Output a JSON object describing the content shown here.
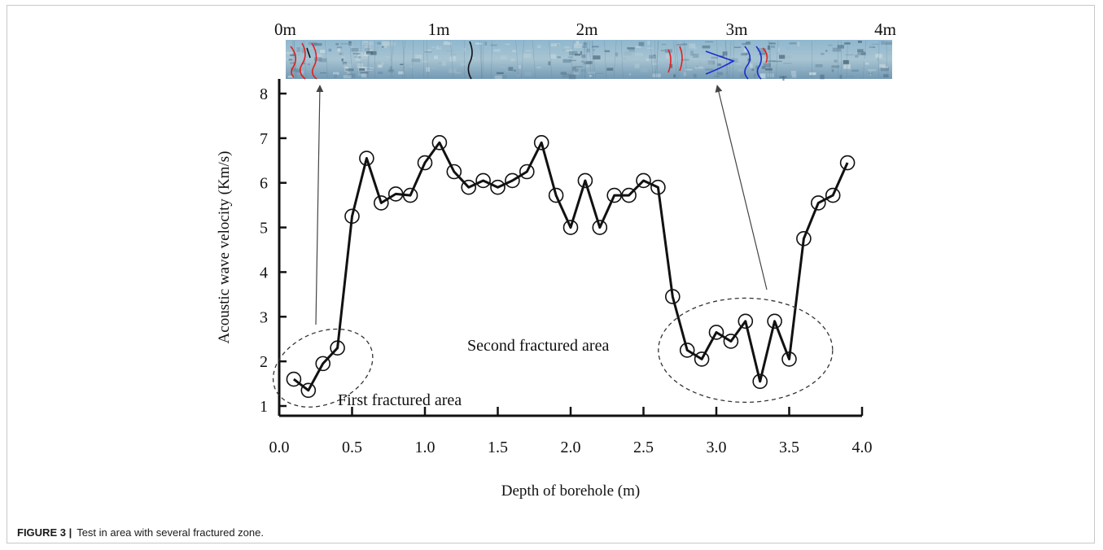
{
  "chart_data": {
    "type": "line",
    "title": "",
    "xlabel": "Depth of borehole (m)",
    "ylabel": "Acoustic wave velocity (Km/s)",
    "xlim": [
      0,
      4.0
    ],
    "ylim": [
      1,
      8
    ],
    "x_ticks": [
      "0.0",
      "0.5",
      "1.0",
      "1.5",
      "2.0",
      "2.5",
      "3.0",
      "3.5",
      "4.0"
    ],
    "y_ticks": [
      "1",
      "2",
      "3",
      "4",
      "5",
      "6",
      "7",
      "8"
    ],
    "grid": false,
    "x": [
      0.1,
      0.2,
      0.3,
      0.4,
      0.5,
      0.6,
      0.7,
      0.8,
      0.9,
      1.0,
      1.1,
      1.2,
      1.3,
      1.4,
      1.5,
      1.6,
      1.7,
      1.8,
      1.9,
      2.0,
      2.1,
      2.2,
      2.3,
      2.4,
      2.5,
      2.6,
      2.7,
      2.8,
      2.9,
      3.0,
      3.1,
      3.2,
      3.3,
      3.4,
      3.5,
      3.6,
      3.7,
      3.8,
      3.9
    ],
    "y": [
      1.6,
      1.35,
      1.95,
      2.3,
      5.25,
      6.55,
      5.55,
      5.75,
      5.72,
      6.45,
      6.9,
      6.25,
      5.9,
      6.05,
      5.9,
      6.05,
      6.25,
      6.9,
      5.72,
      5.0,
      6.05,
      5.0,
      5.72,
      5.72,
      6.05,
      5.9,
      3.45,
      2.25,
      2.05,
      2.65,
      2.45,
      2.9,
      1.55,
      2.9,
      2.05,
      4.75,
      5.55,
      5.72,
      6.45
    ],
    "annotations": [
      {
        "text": "First fractured area",
        "x_range": [
          0.0,
          0.6
        ]
      },
      {
        "text": "Second fractured area",
        "x_range": [
          2.65,
          3.75
        ]
      }
    ],
    "borehole_image": {
      "scale_labels": [
        "0m",
        "1m",
        "2m",
        "3m",
        "4m"
      ]
    },
    "colors": {
      "line": "#111111",
      "core_base": "#7fa7c2",
      "fracture_red": "#e02020",
      "fracture_blue": "#1a2fd0",
      "fracture_black": "#111111"
    }
  },
  "caption": {
    "label": "FIGURE 3 |",
    "text": "Test in area with several fractured zone."
  }
}
